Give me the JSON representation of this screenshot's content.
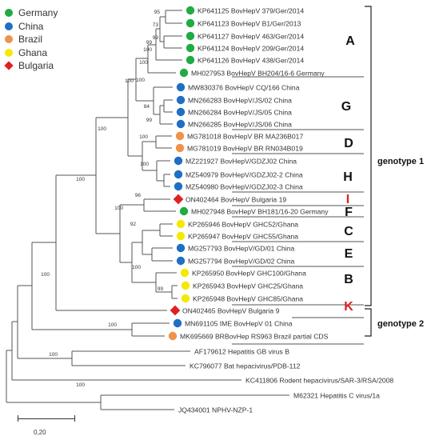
{
  "legend": [
    {
      "label": "Germany",
      "color": "#22aa44",
      "shape": "circle"
    },
    {
      "label": "China",
      "color": "#1f6fc4",
      "shape": "circle"
    },
    {
      "label": "Brazil",
      "color": "#f0924a",
      "shape": "circle"
    },
    {
      "label": "Ghana",
      "color": "#f5e900",
      "shape": "circle"
    },
    {
      "label": "Bulgaria",
      "color": "#e02020",
      "shape": "diamond"
    }
  ],
  "taxa": [
    {
      "label": "KP641125 BovHepV 379/Ger/2014",
      "color": "#22aa44",
      "shape": "circle"
    },
    {
      "label": "KP641123 BovHepV B1/Ger/2013",
      "color": "#22aa44",
      "shape": "circle"
    },
    {
      "label": "KP641127 BovHepV 463/Ger/2014",
      "color": "#22aa44",
      "shape": "circle"
    },
    {
      "label": "KP641124 BovHepV 209/Ger/2014",
      "color": "#22aa44",
      "shape": "circle"
    },
    {
      "label": "KP641126 BovHepV 438/Ger/2014",
      "color": "#22aa44",
      "shape": "circle"
    },
    {
      "label": "MH027953 BovHepV BH204/16-6 Germany",
      "color": "#22aa44",
      "shape": "circle"
    },
    {
      "label": "MW830376 BovHepV CQ/166 China",
      "color": "#1f6fc4",
      "shape": "circle"
    },
    {
      "label": "MN266283 BovHepV/JS/02 China",
      "color": "#1f6fc4",
      "shape": "circle"
    },
    {
      "label": "MN266284 BovHepV/JS/05 China",
      "color": "#1f6fc4",
      "shape": "circle"
    },
    {
      "label": "MN266285 BovHepV/JS/06 China",
      "color": "#1f6fc4",
      "shape": "circle"
    },
    {
      "label": "MG781018 BovHepV BR MA236B017",
      "color": "#f0924a",
      "shape": "circle"
    },
    {
      "label": "MG781019 BovHepV BR RN034B019",
      "color": "#f0924a",
      "shape": "circle"
    },
    {
      "label": "MZ221927 BovHepV/GDZJ02 China",
      "color": "#1f6fc4",
      "shape": "circle"
    },
    {
      "label": "MZ540979 BovHepV/GDZJ02-2 China",
      "color": "#1f6fc4",
      "shape": "circle"
    },
    {
      "label": "MZ540980 BovHepV/GDZJ02-3 China",
      "color": "#1f6fc4",
      "shape": "circle"
    },
    {
      "label": "ON402464 BovHepV Bulgaria 19",
      "color": "#e02020",
      "shape": "diamond"
    },
    {
      "label": "MH027948 BovHepV BH181/16-20 Germany",
      "color": "#22aa44",
      "shape": "circle"
    },
    {
      "label": "KP265946 BovHepV GHC52/Ghana",
      "color": "#f5e900",
      "shape": "circle"
    },
    {
      "label": "KP265947 BovHepV GHC55/Ghana",
      "color": "#f5e900",
      "shape": "circle"
    },
    {
      "label": "MG257793 BovHepV/GD/01 China",
      "color": "#1f6fc4",
      "shape": "circle"
    },
    {
      "label": "MG257794 BovHepV/GD/02 China",
      "color": "#1f6fc4",
      "shape": "circle"
    },
    {
      "label": "KP265950 BovHepV GHC100/Ghana",
      "color": "#f5e900",
      "shape": "circle"
    },
    {
      "label": "KP265943 BovHepV GHC25/Ghana",
      "color": "#f5e900",
      "shape": "circle"
    },
    {
      "label": "KP265948 BovHepV GHC85/Ghana",
      "color": "#f5e900",
      "shape": "circle"
    },
    {
      "label": "ON402465 BovHepV Bulgaria 9",
      "color": "#e02020",
      "shape": "diamond"
    },
    {
      "label": "MN691105 IME BovHepV 01 China",
      "color": "#1f6fc4",
      "shape": "circle"
    },
    {
      "label": "MK695669 BRBovHep RS963 Brazil partial CDS",
      "color": "#f0924a",
      "shape": "circle"
    },
    {
      "label": "AF179612 Hepatitis GB virus B",
      "color": "",
      "shape": "none"
    },
    {
      "label": "KC796077 Bat hepacivirus/PDB-112",
      "color": "",
      "shape": "none"
    },
    {
      "label": "KC411806 Rodent hepacivirus/SAR-3/RSA/2008",
      "color": "",
      "shape": "none"
    },
    {
      "label": "M62321 Hepatitis C virus/1a",
      "color": "",
      "shape": "none"
    },
    {
      "label": "JQ434001 NPHV-NZP-1",
      "color": "",
      "shape": "none"
    }
  ],
  "bootstrap_values": [
    "95",
    "73",
    "99",
    "99",
    "100",
    "100",
    "100",
    "84",
    "99",
    "100",
    "100",
    "100",
    "96",
    "92",
    "100",
    "100",
    "100",
    "99",
    "100",
    "100",
    "100",
    "100",
    "100"
  ],
  "clades": [
    {
      "label": "A",
      "color": "#111111"
    },
    {
      "label": "G",
      "color": "#111111"
    },
    {
      "label": "D",
      "color": "#111111"
    },
    {
      "label": "H",
      "color": "#111111"
    },
    {
      "label": "I",
      "color": "#e02020"
    },
    {
      "label": "F",
      "color": "#111111"
    },
    {
      "label": "C",
      "color": "#111111"
    },
    {
      "label": "E",
      "color": "#111111"
    },
    {
      "label": "B",
      "color": "#111111"
    },
    {
      "label": "K",
      "color": "#e02020"
    }
  ],
  "genotypes": [
    "genotype 1",
    "genotype 2"
  ],
  "scale_bar": "0,20"
}
